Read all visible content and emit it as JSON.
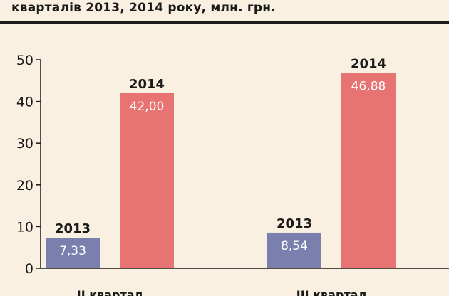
{
  "title": "кварталів 2013, 2014 року, млн. грн.",
  "chart_data": {
    "type": "bar",
    "title": "кварталів 2013, 2014 року, млн. грн.",
    "categories": [
      "II квартал",
      "III квартал"
    ],
    "series": [
      {
        "name": "2013",
        "values": [
          7.33,
          8.54
        ],
        "labels": [
          "7,33",
          "8,54"
        ],
        "color": "#7a7fae"
      },
      {
        "name": "2014",
        "values": [
          42.0,
          46.88
        ],
        "labels": [
          "42,00",
          "46,88"
        ],
        "color": "#e87373"
      }
    ],
    "ylim": [
      0,
      50
    ],
    "yticks": [
      "0",
      "10",
      "20",
      "30",
      "40",
      "50"
    ],
    "xlabel": "",
    "ylabel": "",
    "grid": false
  }
}
